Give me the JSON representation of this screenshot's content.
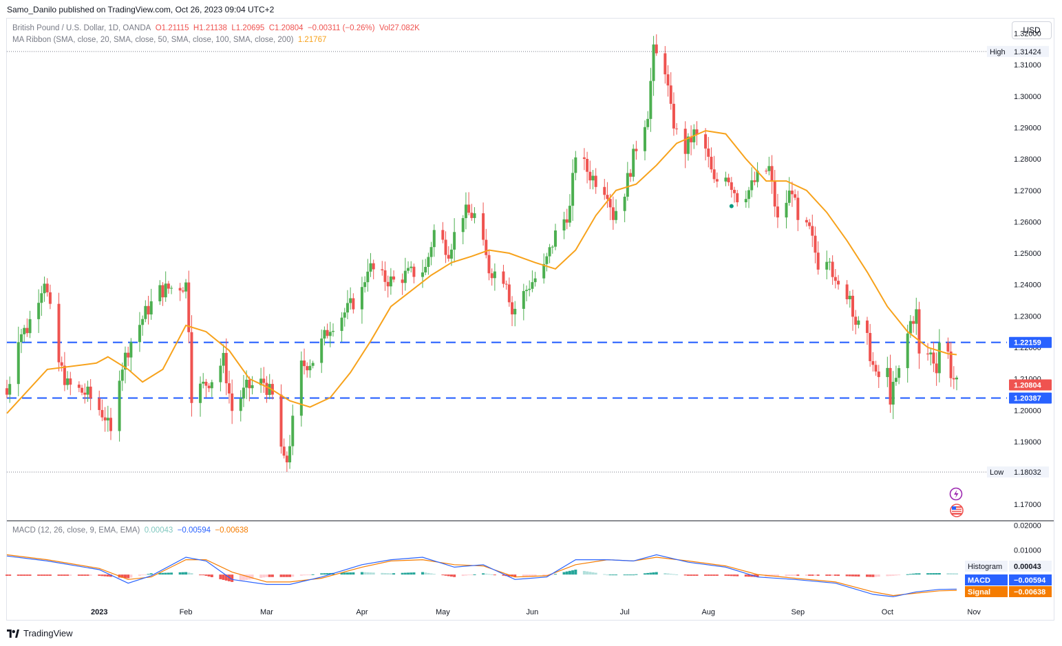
{
  "header": {
    "published": "Samo_Danilo published on TradingView.com, Oct 26, 2023 09:04 UTC+2"
  },
  "legend": {
    "symbol": "British Pound / U.S. Dollar, 1D, OANDA",
    "open": "O1.21115",
    "high": "H1.21138",
    "low": "L1.20695",
    "close": "C1.20804",
    "change": "−0.00311 (−0.26%)",
    "volume": "Vol27.082K",
    "ma_label": "MA Ribbon (SMA, close, 20, SMA, close, 50, SMA, close, 100, SMA, close, 200)",
    "ma_value": "1.21767",
    "macd_label": "MACD (12, 26, close, 9, EMA, EMA)",
    "macd_hist_value": "0.00043",
    "macd_value": "−0.00594",
    "macd_signal_value": "−0.00638"
  },
  "currency_button": "USD",
  "footer": {
    "brand": "TradingView"
  },
  "colors": {
    "up": "#4caf50",
    "down": "#ef5350",
    "ma": "#f7a21b",
    "macd": "#2962ff",
    "signal": "#f57c00",
    "level": "#2962ff"
  },
  "chart_data": {
    "type": "candlestick",
    "symbol": "GBPUSD",
    "y_ticks": [
      "1.32000",
      "1.31000",
      "1.30000",
      "1.29000",
      "1.28000",
      "1.27000",
      "1.26000",
      "1.25000",
      "1.24000",
      "1.23000",
      "1.22000",
      "1.21000",
      "1.20000",
      "1.19000",
      "1.18000",
      "1.17000"
    ],
    "y_tick_values": [
      1.32,
      1.31,
      1.3,
      1.29,
      1.28,
      1.27,
      1.26,
      1.25,
      1.24,
      1.23,
      1.22,
      1.21,
      1.2,
      1.19,
      1.18,
      1.17
    ],
    "ylim": [
      1.165,
      1.3245
    ],
    "x_labels": [
      {
        "label": "2023",
        "date": "2023-01-02"
      },
      {
        "label": "Feb",
        "date": "2023-02-01"
      },
      {
        "label": "Mar",
        "date": "2023-03-01"
      },
      {
        "label": "Apr",
        "date": "2023-04-03"
      },
      {
        "label": "May",
        "date": "2023-05-01"
      },
      {
        "label": "Jun",
        "date": "2023-06-01"
      },
      {
        "label": "Jul",
        "date": "2023-07-03"
      },
      {
        "label": "Aug",
        "date": "2023-08-01"
      },
      {
        "label": "Sep",
        "date": "2023-09-01"
      },
      {
        "label": "Oct",
        "date": "2023-10-02"
      },
      {
        "label": "Nov",
        "date": "2023-11-01"
      }
    ],
    "date_range": [
      "2022-12-01",
      "2023-10-26"
    ],
    "high_label": "High",
    "high_value": "1.31424",
    "low_label": "Low",
    "low_value": "1.18032",
    "levels": [
      {
        "value": 1.22159,
        "label": "1.22159"
      },
      {
        "value": 1.20387,
        "label": "1.20387"
      }
    ],
    "last_price": {
      "value": 1.20804,
      "label": "1.20804"
    },
    "close_path": [
      [
        "2022-12-01",
        1.205
      ],
      [
        "2022-12-05",
        1.224
      ],
      [
        "2022-12-08",
        1.226
      ],
      [
        "2022-12-14",
        1.242
      ],
      [
        "2022-12-19",
        1.215
      ],
      [
        "2022-12-22",
        1.208
      ],
      [
        "2022-12-29",
        1.205
      ],
      [
        "2023-01-04",
        1.198
      ],
      [
        "2023-01-06",
        1.192
      ],
      [
        "2023-01-09",
        1.212
      ],
      [
        "2023-01-13",
        1.222
      ],
      [
        "2023-01-18",
        1.231
      ],
      [
        "2023-01-23",
        1.238
      ],
      [
        "2023-01-27",
        1.239
      ],
      [
        "2023-02-01",
        1.24
      ],
      [
        "2023-02-02",
        1.227
      ],
      [
        "2023-02-03",
        1.205
      ],
      [
        "2023-02-10",
        1.21
      ],
      [
        "2023-02-14",
        1.216
      ],
      [
        "2023-02-17",
        1.2
      ],
      [
        "2023-02-22",
        1.207
      ],
      [
        "2023-02-28",
        1.209
      ],
      [
        "2023-03-03",
        1.204
      ],
      [
        "2023-03-07",
        1.183
      ],
      [
        "2023-03-08",
        1.184
      ],
      [
        "2023-03-13",
        1.214
      ],
      [
        "2023-03-17",
        1.216
      ],
      [
        "2023-03-23",
        1.227
      ],
      [
        "2023-03-29",
        1.232
      ],
      [
        "2023-04-03",
        1.238
      ],
      [
        "2023-04-05",
        1.246
      ],
      [
        "2023-04-10",
        1.242
      ],
      [
        "2023-04-14",
        1.241
      ],
      [
        "2023-04-18",
        1.243
      ],
      [
        "2023-04-25",
        1.245
      ],
      [
        "2023-04-28",
        1.257
      ],
      [
        "2023-05-03",
        1.251
      ],
      [
        "2023-05-08",
        1.263
      ],
      [
        "2023-05-12",
        1.262
      ],
      [
        "2023-05-17",
        1.245
      ],
      [
        "2023-05-23",
        1.242
      ],
      [
        "2023-05-25",
        1.231
      ],
      [
        "2023-05-31",
        1.24
      ],
      [
        "2023-06-05",
        1.245
      ],
      [
        "2023-06-09",
        1.256
      ],
      [
        "2023-06-14",
        1.264
      ],
      [
        "2023-06-16",
        1.282
      ],
      [
        "2023-06-21",
        1.275
      ],
      [
        "2023-06-27",
        1.27
      ],
      [
        "2023-06-29",
        1.262
      ],
      [
        "2023-07-03",
        1.27
      ],
      [
        "2023-07-07",
        1.284
      ],
      [
        "2023-07-11",
        1.295
      ],
      [
        "2023-07-13",
        1.314
      ],
      [
        "2023-07-17",
        1.309
      ],
      [
        "2023-07-19",
        1.295
      ],
      [
        "2023-07-21",
        1.288
      ],
      [
        "2023-07-24",
        1.283
      ],
      [
        "2023-07-27",
        1.288
      ],
      [
        "2023-07-31",
        1.283
      ],
      [
        "2023-08-03",
        1.272
      ],
      [
        "2023-08-07",
        1.276
      ],
      [
        "2023-08-11",
        1.268
      ],
      [
        "2023-08-15",
        1.27
      ],
      [
        "2023-08-18",
        1.274
      ],
      [
        "2023-08-22",
        1.277
      ],
      [
        "2023-08-25",
        1.26
      ],
      [
        "2023-08-30",
        1.271
      ],
      [
        "2023-09-01",
        1.259
      ],
      [
        "2023-09-05",
        1.257
      ],
      [
        "2023-09-08",
        1.247
      ],
      [
        "2023-09-12",
        1.25
      ],
      [
        "2023-09-14",
        1.239
      ],
      [
        "2023-09-19",
        1.237
      ],
      [
        "2023-09-21",
        1.228
      ],
      [
        "2023-09-25",
        1.222
      ],
      [
        "2023-09-28",
        1.21
      ],
      [
        "2023-10-02",
        1.212
      ],
      [
        "2023-10-03",
        1.204
      ],
      [
        "2023-10-06",
        1.212
      ],
      [
        "2023-10-10",
        1.228
      ],
      [
        "2023-10-12",
        1.231
      ],
      [
        "2023-10-13",
        1.217
      ],
      [
        "2023-10-17",
        1.218
      ],
      [
        "2023-10-19",
        1.214
      ],
      [
        "2023-10-20",
        1.222
      ],
      [
        "2023-10-23",
        1.218
      ],
      [
        "2023-10-24",
        1.212
      ],
      [
        "2023-10-26",
        1.208
      ]
    ],
    "ma20_path": [
      [
        "2022-12-01",
        1.199
      ],
      [
        "2022-12-15",
        1.213
      ],
      [
        "2023-01-01",
        1.215
      ],
      [
        "2023-01-05",
        1.217
      ],
      [
        "2023-01-12",
        1.213
      ],
      [
        "2023-01-17",
        1.209
      ],
      [
        "2023-01-24",
        1.213
      ],
      [
        "2023-02-01",
        1.227
      ],
      [
        "2023-02-08",
        1.225
      ],
      [
        "2023-02-16",
        1.219
      ],
      [
        "2023-02-23",
        1.21
      ],
      [
        "2023-03-02",
        1.207
      ],
      [
        "2023-03-09",
        1.203
      ],
      [
        "2023-03-16",
        1.201
      ],
      [
        "2023-03-23",
        1.204
      ],
      [
        "2023-03-30",
        1.212
      ],
      [
        "2023-04-06",
        1.222
      ],
      [
        "2023-04-13",
        1.233
      ],
      [
        "2023-04-20",
        1.238
      ],
      [
        "2023-04-27",
        1.243
      ],
      [
        "2023-05-04",
        1.247
      ],
      [
        "2023-05-11",
        1.249
      ],
      [
        "2023-05-17",
        1.251
      ],
      [
        "2023-05-24",
        1.25
      ],
      [
        "2023-06-02",
        1.247
      ],
      [
        "2023-06-09",
        1.245
      ],
      [
        "2023-06-16",
        1.251
      ],
      [
        "2023-06-23",
        1.262
      ],
      [
        "2023-06-30",
        1.27
      ],
      [
        "2023-07-07",
        1.272
      ],
      [
        "2023-07-14",
        1.278
      ],
      [
        "2023-07-21",
        1.285
      ],
      [
        "2023-07-31",
        1.289
      ],
      [
        "2023-08-07",
        1.288
      ],
      [
        "2023-08-14",
        1.28
      ],
      [
        "2023-08-21",
        1.273
      ],
      [
        "2023-08-28",
        1.273
      ],
      [
        "2023-09-04",
        1.27
      ],
      [
        "2023-09-11",
        1.263
      ],
      [
        "2023-09-18",
        1.254
      ],
      [
        "2023-09-25",
        1.244
      ],
      [
        "2023-10-02",
        1.233
      ],
      [
        "2023-10-09",
        1.225
      ],
      [
        "2023-10-16",
        1.22
      ],
      [
        "2023-10-23",
        1.218
      ],
      [
        "2023-10-26",
        1.2177
      ]
    ],
    "macd": {
      "ylim": [
        -0.0125,
        0.0215
      ],
      "y_ticks": [
        "0.02000",
        "0.01000"
      ],
      "y_tick_values": [
        0.02,
        0.01
      ],
      "histogram": {
        "label": "Histogram",
        "value": "0.00043"
      },
      "macd_line": {
        "label": "MACD",
        "value": "−0.00594"
      },
      "signal_line": {
        "label": "Signal",
        "value": "−0.00638"
      },
      "macd_path": [
        [
          "2022-12-01",
          0.0075
        ],
        [
          "2022-12-15",
          0.0055
        ],
        [
          "2023-01-02",
          0.002
        ],
        [
          "2023-01-12",
          -0.0035
        ],
        [
          "2023-01-20",
          -0.0005
        ],
        [
          "2023-02-01",
          0.007
        ],
        [
          "2023-02-08",
          0.0055
        ],
        [
          "2023-02-17",
          -0.002
        ],
        [
          "2023-03-01",
          -0.004
        ],
        [
          "2023-03-09",
          -0.004
        ],
        [
          "2023-03-20",
          -0.001
        ],
        [
          "2023-04-03",
          0.004
        ],
        [
          "2023-04-13",
          0.006
        ],
        [
          "2023-04-24",
          0.007
        ],
        [
          "2023-05-05",
          0.003
        ],
        [
          "2023-05-15",
          0.004
        ],
        [
          "2023-05-26",
          -0.002
        ],
        [
          "2023-06-06",
          -0.001
        ],
        [
          "2023-06-16",
          0.006
        ],
        [
          "2023-06-27",
          0.006
        ],
        [
          "2023-07-06",
          0.0055
        ],
        [
          "2023-07-14",
          0.008
        ],
        [
          "2023-07-25",
          0.005
        ],
        [
          "2023-08-07",
          0.003
        ],
        [
          "2023-08-18",
          -0.001
        ],
        [
          "2023-08-31",
          -0.002
        ],
        [
          "2023-09-14",
          -0.0035
        ],
        [
          "2023-09-27",
          -0.008
        ],
        [
          "2023-10-04",
          -0.009
        ],
        [
          "2023-10-12",
          -0.007
        ],
        [
          "2023-10-20",
          -0.006
        ],
        [
          "2023-10-26",
          -0.0059
        ]
      ],
      "signal_path": [
        [
          "2022-12-01",
          0.008
        ],
        [
          "2022-12-15",
          0.006
        ],
        [
          "2023-01-02",
          0.0025
        ],
        [
          "2023-01-12",
          -0.002
        ],
        [
          "2023-01-20",
          -0.001
        ],
        [
          "2023-02-01",
          0.006
        ],
        [
          "2023-02-08",
          0.006
        ],
        [
          "2023-02-17",
          0.001
        ],
        [
          "2023-03-01",
          -0.003
        ],
        [
          "2023-03-09",
          -0.003
        ],
        [
          "2023-03-20",
          -0.0015
        ],
        [
          "2023-04-03",
          0.003
        ],
        [
          "2023-04-13",
          0.0055
        ],
        [
          "2023-04-24",
          0.006
        ],
        [
          "2023-05-05",
          0.004
        ],
        [
          "2023-05-15",
          0.0035
        ],
        [
          "2023-05-26",
          -0.001
        ],
        [
          "2023-06-06",
          -0.0005
        ],
        [
          "2023-06-16",
          0.004
        ],
        [
          "2023-06-27",
          0.006
        ],
        [
          "2023-07-06",
          0.0055
        ],
        [
          "2023-07-14",
          0.007
        ],
        [
          "2023-07-25",
          0.0055
        ],
        [
          "2023-08-07",
          0.0035
        ],
        [
          "2023-08-18",
          0.0
        ],
        [
          "2023-08-31",
          -0.0015
        ],
        [
          "2023-09-14",
          -0.003
        ],
        [
          "2023-09-27",
          -0.007
        ],
        [
          "2023-10-04",
          -0.0085
        ],
        [
          "2023-10-12",
          -0.0075
        ],
        [
          "2023-10-20",
          -0.0066
        ],
        [
          "2023-10-26",
          -0.0064
        ]
      ]
    }
  }
}
